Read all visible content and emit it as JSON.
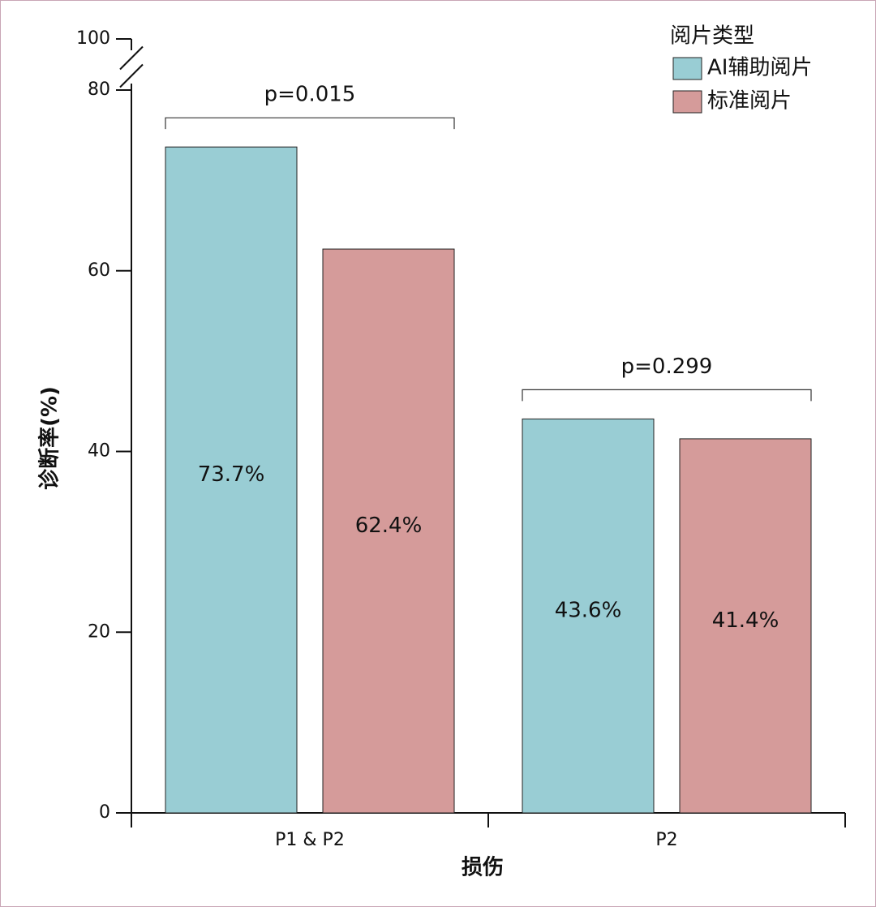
{
  "chart_data": {
    "type": "bar",
    "x_label": "损伤",
    "y_label": "诊断率(%)",
    "categories": [
      "P1 & P2",
      "P2"
    ],
    "series": [
      {
        "name": "AI辅助阅片",
        "color": "#99cdd4",
        "values": [
          73.7,
          43.6
        ],
        "value_labels": [
          "73.7%",
          "43.6%"
        ]
      },
      {
        "name": "标准阅片",
        "color": "#d59b9a",
        "values": [
          62.4,
          41.4
        ],
        "value_labels": [
          "62.4%",
          "41.4%"
        ]
      }
    ],
    "ylim": [
      0,
      100
    ],
    "yticks": [
      0,
      20,
      40,
      60,
      80,
      100
    ],
    "axis_break": [
      80,
      100
    ],
    "legend_title": "阅片类型",
    "legend": "top-right",
    "annotations": [
      "p=0.015",
      "p=0.299"
    ]
  }
}
